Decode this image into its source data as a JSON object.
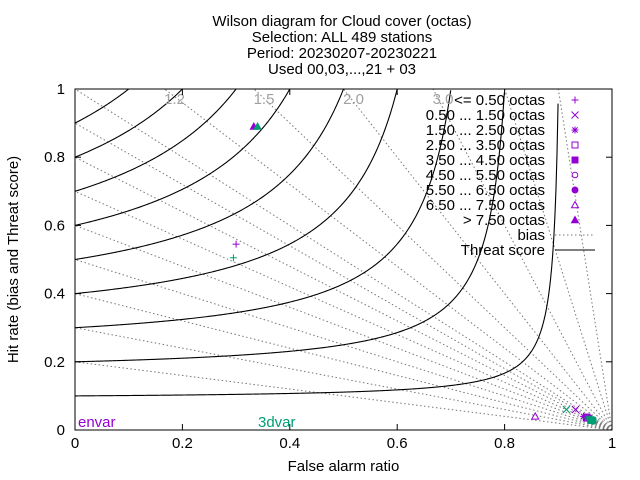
{
  "chart_data": {
    "type": "scatter",
    "title": [
      "Wilson diagram  for Cloud cover (octas)",
      "Selection: ALL    489 stations",
      "Period: 20230207-20230221",
      "Used 00,03,...,21 + 03"
    ],
    "xlabel": "False alarm ratio",
    "ylabel": "Hit rate (bias and Threat score)",
    "xlim": [
      0,
      1
    ],
    "ylim": [
      0,
      1
    ],
    "xticks": [
      "0",
      "0.2",
      "0.4",
      "0.6",
      "0.8",
      "1"
    ],
    "yticks": [
      "0",
      "0.2",
      "0.4",
      "0.6",
      "0.8",
      "1"
    ],
    "legend_position": "top-right",
    "legend": [
      {
        "label": "<= 0.50 octas",
        "marker": "plus"
      },
      {
        "label": "0.50 ... 1.50 octas",
        "marker": "cross"
      },
      {
        "label": "1.50 ... 2.50 octas",
        "marker": "star"
      },
      {
        "label": "2.50 ... 3.50 octas",
        "marker": "square-open"
      },
      {
        "label": "3.50 ... 4.50 octas",
        "marker": "square-filled"
      },
      {
        "label": "4.50 ... 5.50 octas",
        "marker": "circle-open"
      },
      {
        "label": "5.50 ... 6.50 octas",
        "marker": "circle-filled"
      },
      {
        "label": "6.50 ... 7.50 octas",
        "marker": "triangle-open"
      },
      {
        "label": "> 7.50 octas",
        "marker": "triangle-filled"
      },
      {
        "label": "bias",
        "marker": "dotted-line"
      },
      {
        "label": "Threat score",
        "marker": "solid-line"
      }
    ],
    "bias_lines": [
      0.2,
      0.3,
      0.4,
      0.5,
      0.6,
      0.7,
      0.8,
      0.9,
      1.0,
      1.2,
      1.5,
      2.0,
      3.0,
      5.0,
      10.0
    ],
    "bias_labels": [
      "1.2",
      "1.5",
      "2.0",
      "3.0"
    ],
    "threat_score_lines": [
      0.1,
      0.2,
      0.3,
      0.4,
      0.5,
      0.6,
      0.7,
      0.8,
      0.9
    ],
    "experiments": [
      {
        "name": "envar",
        "color": "#9400d3"
      },
      {
        "name": "3dvar",
        "color": "#009e73"
      }
    ],
    "series": [
      {
        "experiment": "envar",
        "points": [
          {
            "marker": "plus",
            "x": 0.3,
            "y": 0.545
          },
          {
            "marker": "cross",
            "x": 0.932,
            "y": 0.06
          },
          {
            "marker": "star",
            "x": 0.947,
            "y": 0.04
          },
          {
            "marker": "square-open",
            "x": 0.952,
            "y": 0.035
          },
          {
            "marker": "square-filled",
            "x": 0.953,
            "y": 0.038
          },
          {
            "marker": "circle-open",
            "x": 0.957,
            "y": 0.033
          },
          {
            "marker": "circle-filled",
            "x": 0.957,
            "y": 0.037
          },
          {
            "marker": "triangle-open",
            "x": 0.857,
            "y": 0.04
          },
          {
            "marker": "triangle-filled",
            "x": 0.333,
            "y": 0.89
          }
        ]
      },
      {
        "experiment": "3dvar",
        "points": [
          {
            "marker": "plus",
            "x": 0.295,
            "y": 0.505
          },
          {
            "marker": "cross",
            "x": 0.915,
            "y": 0.06
          },
          {
            "marker": "star",
            "x": 0.955,
            "y": 0.035
          },
          {
            "marker": "square-open",
            "x": 0.96,
            "y": 0.03
          },
          {
            "marker": "square-filled",
            "x": 0.962,
            "y": 0.028
          },
          {
            "marker": "circle-open",
            "x": 0.965,
            "y": 0.025
          },
          {
            "marker": "circle-filled",
            "x": 0.965,
            "y": 0.03
          },
          {
            "marker": "triangle-open",
            "x": 0.962,
            "y": 0.028
          },
          {
            "marker": "triangle-filled",
            "x": 0.34,
            "y": 0.89
          }
        ]
      }
    ]
  }
}
